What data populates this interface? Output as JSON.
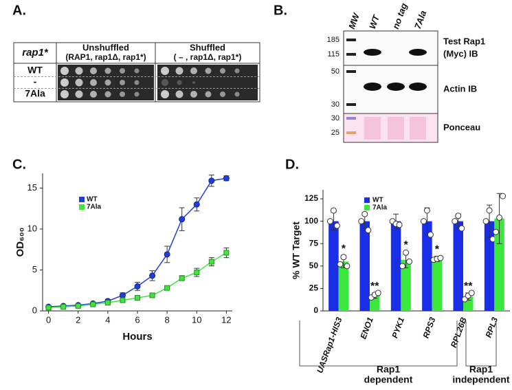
{
  "panel_a": {
    "label": "A.",
    "corner": "rap1*",
    "columns": [
      {
        "title": "Unshuffled",
        "subtitle": "(RAP1, rap1Δ, rap1*)"
      },
      {
        "title": "Shuffled",
        "subtitle": "(  –  , rap1Δ, rap1*)"
      }
    ],
    "rows": [
      "WT",
      "-",
      "7Ala"
    ]
  },
  "panel_b": {
    "label": "B.",
    "lanes": [
      "MW",
      "WT",
      "no tag",
      "7Ala"
    ],
    "blots": [
      {
        "label_lines": [
          "Test Rap1",
          "(Myc) IB"
        ],
        "markers": [
          "185",
          "115"
        ]
      },
      {
        "label_lines": [
          "Actin IB"
        ],
        "markers": [
          "50",
          "30"
        ]
      },
      {
        "label_lines": [
          "Ponceau"
        ],
        "markers": [
          "30",
          "25"
        ]
      }
    ]
  },
  "chart_data": [
    {
      "type": "line",
      "label": "C.",
      "xlabel": "Hours",
      "ylabel": "OD₆₀₀",
      "x": [
        0,
        1,
        2,
        3,
        4,
        5,
        6,
        7,
        8,
        9,
        10,
        11,
        12
      ],
      "xlim": [
        -0.4,
        12.4
      ],
      "xticks": [
        0,
        2,
        4,
        6,
        8,
        10,
        12
      ],
      "ylim": [
        0,
        16.8
      ],
      "yticks": [
        0,
        5,
        10,
        15
      ],
      "series": [
        {
          "name": "WT",
          "color": "#1f3fd6",
          "values": [
            0.5,
            0.6,
            0.7,
            0.9,
            1.2,
            1.9,
            3.0,
            4.3,
            6.9,
            11.2,
            13.0,
            15.9,
            16.2
          ],
          "errors": [
            0.1,
            0.1,
            0.1,
            0.1,
            0.2,
            0.3,
            0.5,
            0.6,
            1.0,
            1.4,
            0.8,
            0.7,
            0.3
          ]
        },
        {
          "name": "7Ala",
          "color": "#3ee63e",
          "values": [
            0.4,
            0.5,
            0.6,
            0.8,
            1.0,
            1.3,
            1.6,
            1.9,
            2.8,
            4.0,
            4.7,
            6.0,
            7.1
          ],
          "errors": [
            0.1,
            0.1,
            0.1,
            0.1,
            0.1,
            0.1,
            0.2,
            0.2,
            0.2,
            0.3,
            0.5,
            0.5,
            0.6
          ]
        }
      ]
    },
    {
      "type": "bar",
      "label": "D.",
      "ylabel": "% WT Target",
      "categories": [
        "UASRap1-HIS3",
        "ENO1",
        "PYK1",
        "RPS3",
        "RPL26B",
        "RPL3"
      ],
      "ylim": [
        0,
        135
      ],
      "yticks": [
        0,
        25,
        50,
        75,
        100,
        125
      ],
      "series": [
        {
          "name": "WT",
          "color": "#1a2ee8",
          "values": [
            100,
            100,
            100,
            100,
            100,
            100
          ],
          "errors": [
            10,
            8,
            8,
            15,
            8,
            18
          ],
          "points": [
            [
              100,
              112,
              95
            ],
            [
              100,
              108,
              90
            ],
            [
              100,
              97,
              96
            ],
            [
              100,
              112,
              85
            ],
            [
              100,
              106,
              92
            ],
            [
              100,
              112,
              80
            ]
          ]
        },
        {
          "name": "7Ala",
          "color": "#3de83d",
          "values": [
            55,
            17,
            57,
            58,
            16,
            103
          ],
          "errors": [
            7,
            3,
            9,
            3,
            4,
            28
          ],
          "points": [
            [
              52,
              60,
              50
            ],
            [
              15,
              18,
              20
            ],
            [
              50,
              65,
              55
            ],
            [
              57,
              58,
              59
            ],
            [
              13,
              17,
              20
            ],
            [
              88,
              104,
              128
            ]
          ]
        }
      ],
      "annotations": [
        "*",
        "**",
        "*",
        "*",
        "**",
        null
      ],
      "groups": [
        {
          "label_lines": [
            "Rap1",
            "dependent"
          ]
        },
        {
          "label_lines": [
            "Rap1",
            "independent"
          ]
        }
      ]
    }
  ]
}
